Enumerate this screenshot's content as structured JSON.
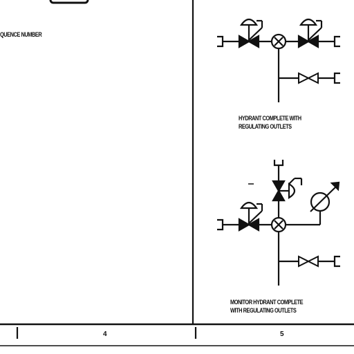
{
  "page": {
    "fragment_label": "QUENCE NUMBER"
  },
  "diagram": {
    "symbol_1": {
      "caption_line1": "HYDRANT COMPLETE WITH",
      "caption_line2": "REGULATING OUTLETS"
    },
    "symbol_2": {
      "caption_line1": "MONITOR HYDRANT COMPLETE",
      "caption_line2": "WITH REGULATING OUTLETS"
    }
  },
  "footer": {
    "column_4": "4",
    "column_5": "5"
  }
}
